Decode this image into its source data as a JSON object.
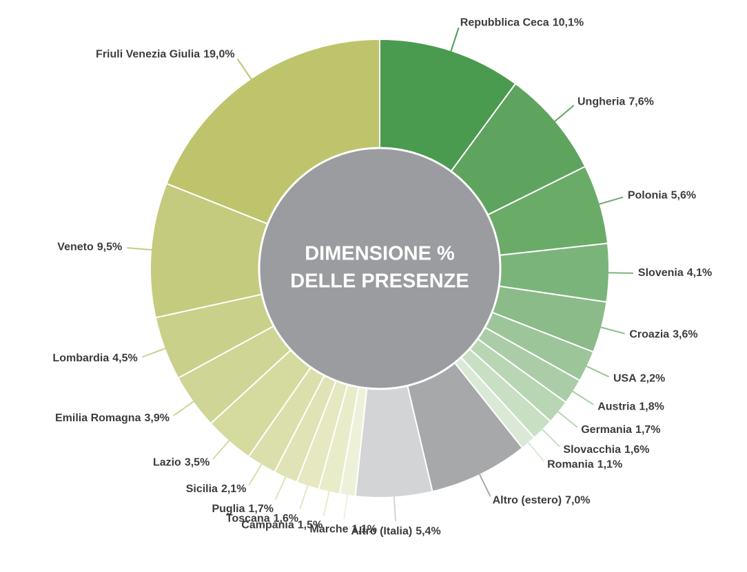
{
  "chart_data": {
    "type": "donut",
    "center_lines": [
      "DIMENSIONE %",
      "DELLE PRESENZE"
    ],
    "categories": [
      "Repubblica Ceca",
      "Ungheria",
      "Polonia",
      "Slovenia",
      "Croazia",
      "USA",
      "Austria",
      "Germania",
      "Slovacchia",
      "Romania",
      "Altro (estero)",
      "Altro (Italia)",
      "Marche",
      "Campania",
      "Toscana",
      "Puglia",
      "Sicilia",
      "Lazio",
      "Emilia Romagna",
      "Lombardia",
      "Veneto",
      "Friuli Venezia Giulia"
    ],
    "values": [
      10.1,
      7.6,
      5.6,
      4.1,
      3.6,
      2.2,
      1.8,
      1.7,
      1.6,
      1.1,
      7.0,
      5.4,
      1.1,
      1.5,
      1.6,
      1.7,
      2.1,
      3.5,
      3.9,
      4.5,
      9.5,
      19.0
    ],
    "value_labels": [
      "10,1%",
      "7,6%",
      "5,6%",
      "4,1%",
      "3,6%",
      "2,2%",
      "1,8%",
      "1,7%",
      "1,6%",
      "1,1%",
      "7,0%",
      "5,4%",
      "1,1%",
      "1,5%",
      "1,6%",
      "1,7%",
      "2,1%",
      "3,5%",
      "3,9%",
      "4,5%",
      "9,5%",
      "19,0%"
    ],
    "colors": [
      "#4a9a50",
      "#5ea35e",
      "#6aab68",
      "#7bb47a",
      "#8bbb88",
      "#9dc59a",
      "#aacda7",
      "#b8d5b4",
      "#c8dfc4",
      "#d9e9d6",
      "#a7a8aa",
      "#d3d4d5",
      "#eef1da",
      "#e9ecc9",
      "#e5e8c0",
      "#dfe3b5",
      "#dbdfac",
      "#d5da9f",
      "#ced595",
      "#c9d08a",
      "#c4cb7e",
      "#bec46c"
    ],
    "center_color": "#9b9c9f"
  }
}
